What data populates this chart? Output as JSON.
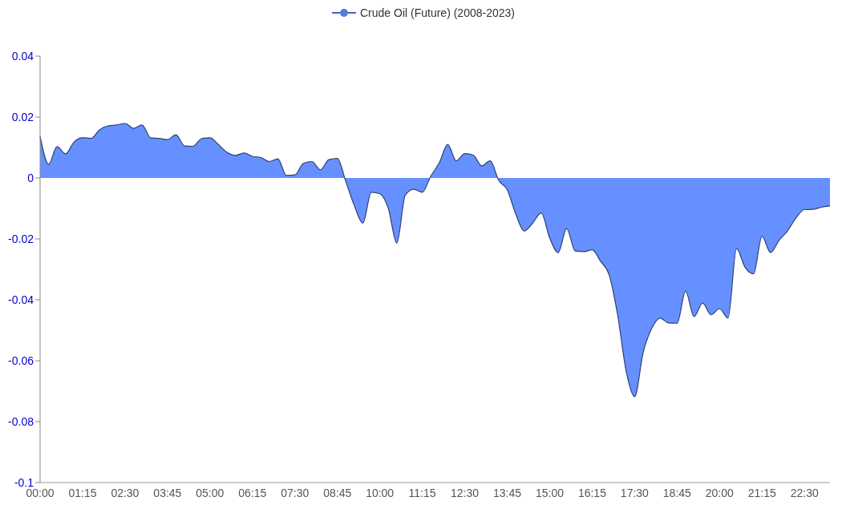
{
  "chart_data": {
    "type": "area",
    "legend": "top",
    "marker": "none",
    "grid": false,
    "categories": [
      "00:00",
      null,
      null,
      null,
      null,
      "01:15",
      null,
      null,
      null,
      null,
      "02:30",
      null,
      null,
      null,
      null,
      "03:45",
      null,
      null,
      null,
      null,
      "05:00",
      null,
      null,
      null,
      null,
      "06:15",
      null,
      null,
      null,
      null,
      "07:30",
      null,
      null,
      null,
      null,
      "08:45",
      null,
      null,
      null,
      null,
      "10:00",
      null,
      null,
      null,
      null,
      "11:15",
      null,
      null,
      null,
      null,
      "12:30",
      null,
      null,
      null,
      null,
      "13:45",
      null,
      null,
      null,
      null,
      "15:00",
      null,
      null,
      null,
      null,
      "16:15",
      null,
      null,
      null,
      null,
      "17:30",
      null,
      null,
      null,
      null,
      "18:45",
      null,
      null,
      null,
      null,
      "20:00",
      null,
      null,
      null,
      null,
      "21:15",
      null,
      null,
      null,
      null,
      "22:30",
      null,
      null,
      null
    ],
    "ylim": [
      -0.1,
      0.04
    ],
    "yticks": [
      -0.1,
      -0.08,
      -0.06,
      -0.04,
      -0.02,
      0,
      0.02,
      0.04
    ],
    "series": [
      {
        "name": "Crude Oil (Future) (2008-2023)",
        "color": "#6690ff",
        "values": [
          0.0137,
          0.0045,
          0.0103,
          0.0079,
          0.0118,
          0.0132,
          0.013,
          0.0158,
          0.0171,
          0.0174,
          0.0179,
          0.0163,
          0.0174,
          0.0132,
          0.013,
          0.0126,
          0.0142,
          0.0105,
          0.0104,
          0.0129,
          0.0132,
          0.011,
          0.0084,
          0.0074,
          0.0082,
          0.0071,
          0.0067,
          0.0054,
          0.0063,
          0.0008,
          0.001,
          0.0048,
          0.0054,
          0.0027,
          0.006,
          0.0064,
          -0.0012,
          -0.0091,
          -0.0148,
          -0.0047,
          -0.0052,
          -0.01,
          -0.0214,
          -0.0056,
          -0.0037,
          -0.0047,
          0.0006,
          0.005,
          0.011,
          0.0056,
          0.008,
          0.0075,
          0.004,
          0.0056,
          -0.0008,
          -0.0039,
          -0.0118,
          -0.0174,
          -0.0148,
          -0.0115,
          -0.0197,
          -0.0245,
          -0.0166,
          -0.024,
          -0.0242,
          -0.0236,
          -0.0274,
          -0.0318,
          -0.045,
          -0.0634,
          -0.0718,
          -0.0574,
          -0.0495,
          -0.046,
          -0.0476,
          -0.0477,
          -0.0372,
          -0.0455,
          -0.0411,
          -0.0449,
          -0.0429,
          -0.046,
          -0.0232,
          -0.0293,
          -0.0315,
          -0.0192,
          -0.0245,
          -0.0205,
          -0.0174,
          -0.0131,
          -0.0104,
          -0.0103,
          -0.0096,
          -0.0092
        ]
      }
    ]
  }
}
